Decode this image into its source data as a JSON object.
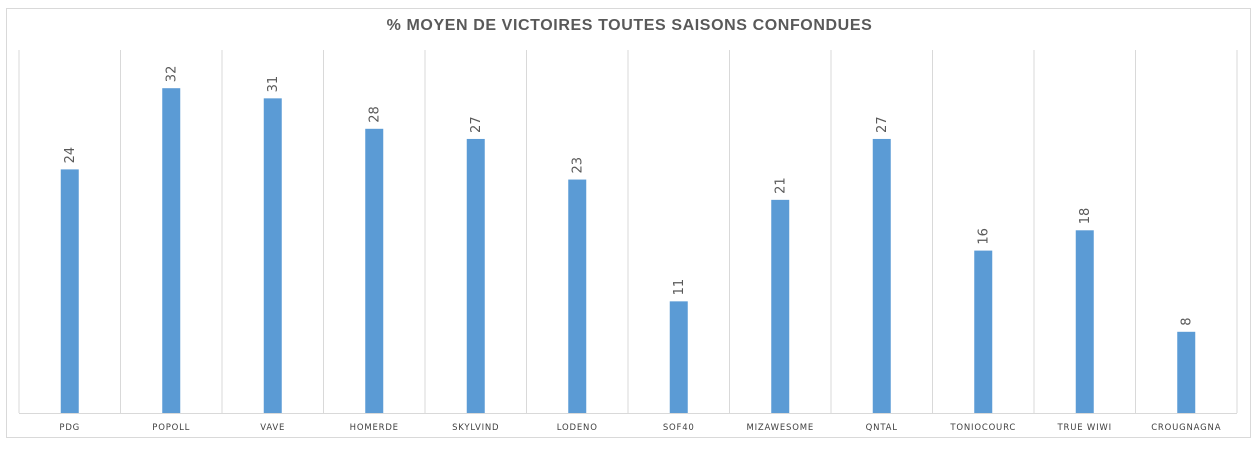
{
  "chart_data": {
    "type": "bar",
    "title": "% MOYEN DE VICTOIRES TOUTES SAISONS CONFONDUES",
    "categories": [
      "PDG",
      "POPOLL",
      "VAVE",
      "HOMERDE",
      "SKYLVIND",
      "LODENO",
      "SOF40",
      "MIZAWESOME",
      "QNTAL",
      "TONIOCOURC",
      "TRUE WIWI",
      "CROUGNAGNA"
    ],
    "values": [
      24,
      32,
      31,
      28,
      27,
      23,
      11,
      21,
      27,
      16,
      18,
      8
    ],
    "data_labels": [
      "24",
      "32",
      "31",
      "28",
      "27",
      "23",
      "11",
      "21",
      "27",
      "16",
      "18",
      "8"
    ],
    "ylim": [
      0,
      36
    ],
    "xlabel": "",
    "ylabel": "",
    "bar_color": "#5b9bd5",
    "gridlines": "vertical",
    "legend": "none"
  }
}
